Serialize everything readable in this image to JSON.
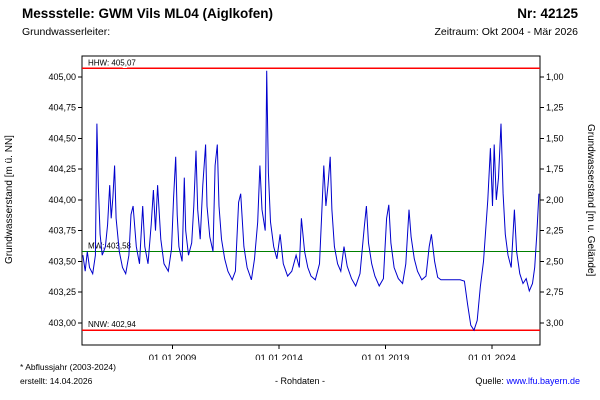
{
  "header": {
    "title": "Messstelle: GWM Vils ML04 (Aiglkofen)",
    "station_no": "Nr: 42125",
    "aquifer_label": "Grundwasserleiter:",
    "period": "Zeitraum: Okt 2004 - Mär 2026"
  },
  "footer": {
    "footnote": "* Abflussjahr (2003-2024)",
    "created": "erstellt: 14.04.2026",
    "center_label": "- Rohdaten -",
    "source_label": "Quelle:",
    "source_link": "www.lfu.bayern.de",
    "link_color": "#0000ff"
  },
  "chart_data": {
    "type": "line",
    "title": "",
    "ylabel_left": "Grundwasserstand [m ü. NN]",
    "ylabel_right": "Grundwasserstand [m u. Gelände]",
    "grid": false,
    "legend": "none",
    "x_range": [
      2004.75,
      2026.25
    ],
    "y_range": [
      402.82,
      405.17
    ],
    "y_ticks": [
      {
        "v": 405.0,
        "left": "405,00",
        "right": "1,00"
      },
      {
        "v": 404.75,
        "left": "404,75",
        "right": "1,25"
      },
      {
        "v": 404.5,
        "left": "404,50",
        "right": "1,50"
      },
      {
        "v": 404.25,
        "left": "404,25",
        "right": "1,75"
      },
      {
        "v": 404.0,
        "left": "404,00",
        "right": "2,00"
      },
      {
        "v": 403.75,
        "left": "403,75",
        "right": "2,25"
      },
      {
        "v": 403.5,
        "left": "403,50",
        "right": "2,50"
      },
      {
        "v": 403.25,
        "left": "403,25",
        "right": "2,75"
      },
      {
        "v": 403.0,
        "left": "403,00",
        "right": "3,00"
      }
    ],
    "x_ticks": [
      {
        "v": 2009.0,
        "label": "01.01.2009"
      },
      {
        "v": 2014.0,
        "label": "01.01.2014"
      },
      {
        "v": 2019.0,
        "label": "01.01.2019"
      },
      {
        "v": 2024.0,
        "label": "01.01.2024"
      }
    ],
    "reference_lines": [
      {
        "name": "HHW",
        "label": "HHW: 405,07",
        "value": 405.07,
        "color": "#ff0000"
      },
      {
        "name": "MW",
        "label": "MW: 403,58",
        "value": 403.58,
        "color": "#008000"
      },
      {
        "name": "NNW",
        "label": "NNW: 402,94",
        "value": 402.94,
        "color": "#ff0000"
      }
    ],
    "series": [
      {
        "name": "Rohdaten",
        "color": "#0000cd",
        "points": [
          [
            2004.79,
            403.55
          ],
          [
            2004.9,
            403.42
          ],
          [
            2005.0,
            403.58
          ],
          [
            2005.1,
            403.45
          ],
          [
            2005.25,
            403.4
          ],
          [
            2005.38,
            403.55
          ],
          [
            2005.45,
            404.62
          ],
          [
            2005.52,
            404.1
          ],
          [
            2005.6,
            403.72
          ],
          [
            2005.7,
            403.55
          ],
          [
            2005.85,
            403.62
          ],
          [
            2005.95,
            403.8
          ],
          [
            2006.05,
            404.12
          ],
          [
            2006.12,
            403.85
          ],
          [
            2006.2,
            404.02
          ],
          [
            2006.28,
            404.28
          ],
          [
            2006.35,
            403.85
          ],
          [
            2006.5,
            403.58
          ],
          [
            2006.65,
            403.45
          ],
          [
            2006.8,
            403.4
          ],
          [
            2006.95,
            403.55
          ],
          [
            2007.05,
            403.88
          ],
          [
            2007.15,
            403.95
          ],
          [
            2007.3,
            403.62
          ],
          [
            2007.45,
            403.48
          ],
          [
            2007.6,
            403.95
          ],
          [
            2007.7,
            403.62
          ],
          [
            2007.85,
            403.48
          ],
          [
            2008.0,
            403.8
          ],
          [
            2008.1,
            404.08
          ],
          [
            2008.2,
            403.75
          ],
          [
            2008.3,
            404.12
          ],
          [
            2008.45,
            403.68
          ],
          [
            2008.6,
            403.48
          ],
          [
            2008.8,
            403.42
          ],
          [
            2008.95,
            403.6
          ],
          [
            2009.05,
            404.02
          ],
          [
            2009.15,
            404.35
          ],
          [
            2009.22,
            403.88
          ],
          [
            2009.3,
            403.62
          ],
          [
            2009.45,
            403.5
          ],
          [
            2009.55,
            404.18
          ],
          [
            2009.62,
            403.75
          ],
          [
            2009.75,
            403.55
          ],
          [
            2009.9,
            403.65
          ],
          [
            2010.0,
            403.95
          ],
          [
            2010.1,
            404.4
          ],
          [
            2010.18,
            403.92
          ],
          [
            2010.3,
            403.68
          ],
          [
            2010.42,
            404.12
          ],
          [
            2010.55,
            404.45
          ],
          [
            2010.62,
            403.95
          ],
          [
            2010.75,
            403.7
          ],
          [
            2010.9,
            403.58
          ],
          [
            2011.0,
            404.28
          ],
          [
            2011.1,
            404.45
          ],
          [
            2011.18,
            403.95
          ],
          [
            2011.3,
            403.68
          ],
          [
            2011.45,
            403.52
          ],
          [
            2011.6,
            403.42
          ],
          [
            2011.8,
            403.35
          ],
          [
            2011.95,
            403.42
          ],
          [
            2012.1,
            403.98
          ],
          [
            2012.2,
            404.05
          ],
          [
            2012.35,
            403.62
          ],
          [
            2012.5,
            403.45
          ],
          [
            2012.7,
            403.35
          ],
          [
            2012.85,
            403.52
          ],
          [
            2013.0,
            403.82
          ],
          [
            2013.1,
            404.28
          ],
          [
            2013.2,
            403.92
          ],
          [
            2013.35,
            403.75
          ],
          [
            2013.42,
            405.05
          ],
          [
            2013.5,
            404.22
          ],
          [
            2013.6,
            403.82
          ],
          [
            2013.75,
            403.62
          ],
          [
            2013.9,
            403.52
          ],
          [
            2014.05,
            403.72
          ],
          [
            2014.2,
            403.48
          ],
          [
            2014.4,
            403.38
          ],
          [
            2014.6,
            403.42
          ],
          [
            2014.8,
            403.55
          ],
          [
            2014.95,
            403.45
          ],
          [
            2015.05,
            403.85
          ],
          [
            2015.2,
            403.58
          ],
          [
            2015.35,
            403.45
          ],
          [
            2015.5,
            403.38
          ],
          [
            2015.7,
            403.35
          ],
          [
            2015.9,
            403.48
          ],
          [
            2016.0,
            403.88
          ],
          [
            2016.1,
            404.28
          ],
          [
            2016.2,
            403.95
          ],
          [
            2016.3,
            404.12
          ],
          [
            2016.4,
            404.35
          ],
          [
            2016.48,
            403.92
          ],
          [
            2016.6,
            403.62
          ],
          [
            2016.75,
            403.48
          ],
          [
            2016.9,
            403.42
          ],
          [
            2017.05,
            403.62
          ],
          [
            2017.2,
            403.46
          ],
          [
            2017.4,
            403.36
          ],
          [
            2017.6,
            403.3
          ],
          [
            2017.8,
            403.4
          ],
          [
            2018.0,
            403.78
          ],
          [
            2018.1,
            403.95
          ],
          [
            2018.2,
            403.65
          ],
          [
            2018.35,
            403.48
          ],
          [
            2018.5,
            403.38
          ],
          [
            2018.7,
            403.3
          ],
          [
            2018.9,
            403.36
          ],
          [
            2019.05,
            403.85
          ],
          [
            2019.15,
            403.96
          ],
          [
            2019.25,
            403.65
          ],
          [
            2019.4,
            403.45
          ],
          [
            2019.6,
            403.36
          ],
          [
            2019.8,
            403.32
          ],
          [
            2019.95,
            403.48
          ],
          [
            2020.1,
            403.92
          ],
          [
            2020.2,
            403.7
          ],
          [
            2020.35,
            403.52
          ],
          [
            2020.5,
            403.42
          ],
          [
            2020.7,
            403.35
          ],
          [
            2020.9,
            403.38
          ],
          [
            2021.05,
            403.62
          ],
          [
            2021.15,
            403.72
          ],
          [
            2021.3,
            403.5
          ],
          [
            2021.45,
            403.37
          ],
          [
            2021.6,
            403.35
          ],
          [
            2021.9,
            403.35
          ],
          [
            2022.2,
            403.35
          ],
          [
            2022.5,
            403.35
          ],
          [
            2022.7,
            403.34
          ],
          [
            2022.85,
            403.15
          ],
          [
            2023.0,
            402.98
          ],
          [
            2023.15,
            402.94
          ],
          [
            2023.3,
            403.02
          ],
          [
            2023.45,
            403.3
          ],
          [
            2023.6,
            403.5
          ],
          [
            2023.8,
            404.0
          ],
          [
            2023.92,
            404.42
          ],
          [
            2024.02,
            403.95
          ],
          [
            2024.1,
            404.45
          ],
          [
            2024.2,
            404.0
          ],
          [
            2024.3,
            404.18
          ],
          [
            2024.42,
            404.62
          ],
          [
            2024.52,
            404.05
          ],
          [
            2024.62,
            403.72
          ],
          [
            2024.75,
            403.55
          ],
          [
            2024.9,
            403.45
          ],
          [
            2025.05,
            403.92
          ],
          [
            2025.15,
            403.58
          ],
          [
            2025.3,
            403.4
          ],
          [
            2025.45,
            403.32
          ],
          [
            2025.6,
            403.36
          ],
          [
            2025.75,
            403.26
          ],
          [
            2025.9,
            403.32
          ],
          [
            2026.0,
            403.45
          ],
          [
            2026.1,
            403.72
          ],
          [
            2026.2,
            404.05
          ]
        ]
      }
    ]
  }
}
